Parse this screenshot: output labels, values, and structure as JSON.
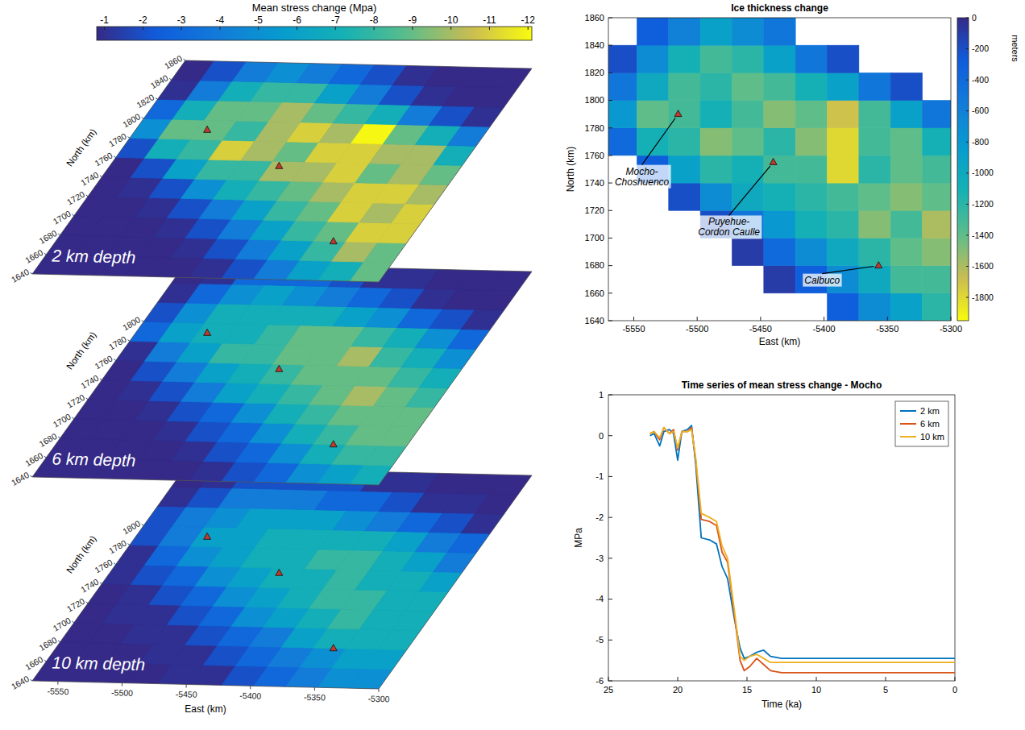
{
  "chart_data": [
    {
      "type": "contour",
      "title": "2 km depth",
      "ylabel": "North (km)",
      "xlim": [
        -5570,
        -5300
      ],
      "ylim": [
        1640,
        1860
      ],
      "yticks": [
        1640,
        1660,
        1680,
        1700,
        1720,
        1740,
        1760,
        1780,
        1800,
        1820,
        1840,
        1860
      ],
      "x": [
        -5560,
        -5535,
        -5510,
        -5485,
        -5460,
        -5435,
        -5410,
        -5385,
        -5360,
        -5335,
        -5310
      ],
      "y": [
        1650,
        1670,
        1690,
        1710,
        1730,
        1750,
        1770,
        1790,
        1810,
        1830,
        1850
      ],
      "cells": [
        [
          -0.5,
          -0.5,
          -0.5,
          -0.5,
          -0.5,
          -1,
          -2,
          -4,
          -6,
          -7,
          -9
        ],
        [
          -0.5,
          -0.5,
          -0.5,
          -0.5,
          -1,
          -2,
          -4,
          -6,
          -8,
          -10,
          -9
        ],
        [
          -0.5,
          -0.5,
          -0.5,
          -1,
          -2,
          -4,
          -6,
          -8,
          -9,
          -11,
          -11
        ],
        [
          -0.5,
          -0.5,
          -1,
          -2,
          -4,
          -6,
          -8,
          -9,
          -11,
          -10,
          -11
        ],
        [
          -0.5,
          -1,
          -2,
          -5,
          -7,
          -8,
          -9,
          -10,
          -11,
          -11,
          -10
        ],
        [
          -0.5,
          -2,
          -6,
          -8,
          -8,
          -10,
          -10,
          -11,
          -9,
          -10,
          -9
        ],
        [
          -2,
          -7,
          -8,
          -11,
          -10,
          -9,
          -11,
          -11,
          -10,
          -10,
          -7
        ],
        [
          -5,
          -9,
          -9,
          -8,
          -10,
          -11,
          -10,
          -12,
          -9,
          -7,
          -4
        ],
        [
          -3,
          -7,
          -9,
          -9,
          -10,
          -9,
          -8,
          -7,
          -4,
          -2,
          -1
        ],
        [
          -1,
          -4,
          -7,
          -8,
          -8,
          -6,
          -4,
          -2,
          -1,
          -0.5,
          -0.5
        ],
        [
          -0.5,
          -2,
          -4,
          -5,
          -4,
          -3,
          -2,
          -1,
          -0.5,
          -0.5,
          -0.5
        ]
      ],
      "volcanoes": [
        {
          "east": -5515,
          "north": 1790
        },
        {
          "east": -5440,
          "north": 1755
        },
        {
          "east": -5357,
          "north": 1680
        }
      ],
      "colorbar": {
        "title": "Mean stress change (Mpa)",
        "range": [
          -0.8,
          -12.1
        ],
        "ticks": [
          -1,
          -2,
          -3,
          -4,
          -5,
          -6,
          -7,
          -8,
          -9,
          -10,
          -11,
          -12
        ]
      }
    },
    {
      "type": "contour",
      "title": "6 km depth",
      "ylabel": "North (km)",
      "xlim": [
        -5570,
        -5300
      ],
      "ylim": [
        1640,
        1860
      ],
      "yticks": [
        1640,
        1660,
        1680,
        1700,
        1720,
        1740,
        1760,
        1780,
        1800
      ],
      "x": [
        -5560,
        -5535,
        -5510,
        -5485,
        -5460,
        -5435,
        -5410,
        -5385,
        -5360,
        -5335,
        -5310
      ],
      "y": [
        1650,
        1670,
        1690,
        1710,
        1730,
        1750,
        1770,
        1790,
        1810,
        1830,
        1850
      ],
      "cells": [
        [
          -0.5,
          -0.5,
          -0.5,
          -0.5,
          -0.5,
          -1,
          -2,
          -3,
          -5,
          -6,
          -7
        ],
        [
          -0.5,
          -0.5,
          -0.5,
          -0.5,
          -1,
          -2,
          -3,
          -5,
          -7,
          -8,
          -8
        ],
        [
          -0.5,
          -0.5,
          -0.5,
          -1,
          -2,
          -3,
          -5,
          -7,
          -8,
          -9,
          -9
        ],
        [
          -0.5,
          -0.5,
          -1,
          -2,
          -3,
          -5,
          -7,
          -8,
          -9,
          -9,
          -9
        ],
        [
          -0.5,
          -1,
          -2,
          -4,
          -6,
          -7,
          -8,
          -9,
          -10,
          -9,
          -8
        ],
        [
          -0.5,
          -2,
          -4,
          -6,
          -7,
          -8,
          -9,
          -9,
          -9,
          -8,
          -7
        ],
        [
          -1,
          -4,
          -6,
          -8,
          -8,
          -9,
          -9,
          -10,
          -8,
          -7,
          -5
        ],
        [
          -3,
          -6,
          -7,
          -7,
          -8,
          -9,
          -9,
          -8,
          -7,
          -5,
          -3
        ],
        [
          -2,
          -5,
          -7,
          -7,
          -7,
          -7,
          -6,
          -5,
          -3,
          -2,
          -1
        ],
        [
          -1,
          -3,
          -5,
          -6,
          -5,
          -4,
          -3,
          -2,
          -1,
          -0.5,
          -0.5
        ],
        [
          -0.5,
          -1,
          -3,
          -3,
          -3,
          -2,
          -1,
          -1,
          -0.5,
          -0.5,
          -0.5
        ]
      ],
      "volcanoes": [
        {
          "east": -5515,
          "north": 1790
        },
        {
          "east": -5440,
          "north": 1755
        },
        {
          "east": -5357,
          "north": 1680
        }
      ]
    },
    {
      "type": "contour",
      "title": "10 km depth",
      "xlabel": "East (km)",
      "ylabel": "North (km)",
      "xlim": [
        -5570,
        -5300
      ],
      "ylim": [
        1640,
        1860
      ],
      "xticks": [
        -5550,
        -5500,
        -5450,
        -5400,
        -5350,
        -5300
      ],
      "yticks": [
        1640,
        1660,
        1680,
        1700,
        1720,
        1740,
        1760,
        1780,
        1800
      ],
      "x": [
        -5560,
        -5535,
        -5510,
        -5485,
        -5460,
        -5435,
        -5410,
        -5385,
        -5360,
        -5335,
        -5310
      ],
      "y": [
        1650,
        1670,
        1690,
        1710,
        1730,
        1750,
        1770,
        1790,
        1810,
        1830,
        1850
      ],
      "cells": [
        [
          -0.5,
          -0.5,
          -0.5,
          -0.5,
          -1,
          -1,
          -2,
          -3,
          -4,
          -5,
          -5
        ],
        [
          -0.5,
          -0.5,
          -0.5,
          -1,
          -1,
          -2,
          -3,
          -4,
          -5,
          -6,
          -6
        ],
        [
          -0.5,
          -0.5,
          -1,
          -1,
          -2,
          -3,
          -4,
          -6,
          -7,
          -7,
          -7
        ],
        [
          -0.5,
          -1,
          -1,
          -2,
          -3,
          -5,
          -6,
          -7,
          -8,
          -7,
          -7
        ],
        [
          -0.5,
          -1,
          -2,
          -3,
          -5,
          -6,
          -7,
          -8,
          -8,
          -7,
          -7
        ],
        [
          -1,
          -2,
          -3,
          -5,
          -6,
          -7,
          -7,
          -8,
          -7,
          -7,
          -6
        ],
        [
          -1,
          -3,
          -5,
          -6,
          -7,
          -7,
          -8,
          -8,
          -7,
          -6,
          -4
        ],
        [
          -2,
          -4,
          -6,
          -6,
          -7,
          -7,
          -7,
          -7,
          -6,
          -4,
          -3
        ],
        [
          -2,
          -4,
          -5,
          -6,
          -6,
          -6,
          -5,
          -4,
          -3,
          -2,
          -1
        ],
        [
          -1,
          -2,
          -4,
          -4,
          -4,
          -3,
          -3,
          -2,
          -1,
          -1,
          -0.5
        ],
        [
          -0.5,
          -1,
          -2,
          -2,
          -2,
          -2,
          -1,
          -1,
          -0.5,
          -0.5,
          -0.5
        ]
      ],
      "volcanoes": [
        {
          "east": -5515,
          "north": 1790
        },
        {
          "east": -5440,
          "north": 1755
        },
        {
          "east": -5357,
          "north": 1680
        }
      ]
    },
    {
      "type": "contour",
      "title": "Ice thickness change",
      "xlabel": "East (km)",
      "ylabel": "North (km)",
      "xlim": [
        -5570,
        -5300
      ],
      "ylim": [
        1640,
        1860
      ],
      "xticks": [
        -5550,
        -5500,
        -5450,
        -5400,
        -5350,
        -5300
      ],
      "yticks": [
        1640,
        1660,
        1680,
        1700,
        1720,
        1740,
        1760,
        1780,
        1800,
        1820,
        1840,
        1860
      ],
      "x": [
        -5560,
        -5535,
        -5510,
        -5485,
        -5460,
        -5435,
        -5410,
        -5385,
        -5360,
        -5335,
        -5310
      ],
      "y": [
        1650,
        1670,
        1690,
        1710,
        1730,
        1750,
        1770,
        1790,
        1810,
        1830,
        1850
      ],
      "cells": [
        [
          null,
          null,
          null,
          null,
          null,
          null,
          null,
          -300,
          -700,
          -900,
          -1200
        ],
        [
          null,
          null,
          null,
          null,
          null,
          -100,
          -300,
          -700,
          -1000,
          -1300,
          -1300
        ],
        [
          null,
          null,
          null,
          null,
          -100,
          -400,
          -700,
          -1000,
          -1200,
          -1400,
          -1500
        ],
        [
          null,
          null,
          null,
          -200,
          -500,
          -800,
          -1100,
          -1200,
          -1500,
          -1300,
          -1600
        ],
        [
          null,
          null,
          -200,
          -700,
          -1000,
          -1100,
          -1200,
          -1300,
          -1400,
          -1500,
          -1400
        ],
        [
          null,
          -300,
          -900,
          -1200,
          -1100,
          -1300,
          -1300,
          -1800,
          -1200,
          -1400,
          -1300
        ],
        [
          -400,
          -1100,
          -1200,
          -1500,
          -1400,
          -1200,
          -1500,
          -1800,
          -1300,
          -1400,
          -1100
        ],
        [
          -800,
          -1400,
          -1300,
          -1100,
          -1300,
          -1500,
          -1400,
          -1700,
          -1300,
          -900,
          -500
        ],
        [
          -500,
          -1000,
          -1300,
          -1200,
          -1400,
          -1300,
          -1100,
          -900,
          -500,
          -200,
          null
        ],
        [
          -200,
          -700,
          -1100,
          -1300,
          -1200,
          -900,
          -500,
          -200,
          null,
          null,
          null
        ],
        [
          null,
          -300,
          -600,
          -900,
          -700,
          -500,
          null,
          null,
          null,
          null,
          null
        ]
      ],
      "volcanoes": [
        {
          "name": "Mocho-Choshuenco",
          "east": -5515,
          "north": 1790
        },
        {
          "name": "Puyehue-Cordon Caulle",
          "east": -5440,
          "north": 1755
        },
        {
          "name": "Calbuco",
          "east": -5357,
          "north": 1680
        }
      ],
      "colorbar": {
        "label": "meters",
        "range": [
          0,
          -1950
        ],
        "ticks": [
          0,
          -200,
          -400,
          -600,
          -800,
          -1000,
          -1200,
          -1400,
          -1600,
          -1800
        ]
      }
    },
    {
      "type": "line",
      "title": "Time series of mean stress change - Mocho",
      "xlabel": "Time (ka)",
      "ylabel": "MPa",
      "xlim": [
        25,
        0
      ],
      "ylim": [
        -6,
        1
      ],
      "xticks": [
        25,
        20,
        15,
        10,
        5,
        0
      ],
      "yticks": [
        -6,
        -5,
        -4,
        -3,
        -2,
        -1,
        0,
        1
      ],
      "legend": "top-right",
      "x": [
        22,
        21.7,
        21.3,
        21,
        20.6,
        20.3,
        20,
        19.7,
        19.3,
        19,
        18.7,
        18.3,
        17.7,
        17.2,
        16.8,
        16.4,
        15.9,
        15.5,
        15.2,
        14.8,
        14.3,
        13.8,
        13.3,
        12.5,
        10,
        5,
        0
      ],
      "series": [
        {
          "name": "2 km",
          "color": "#0072bd",
          "values": [
            0,
            0.05,
            -0.25,
            0.1,
            0.15,
            0.05,
            -0.6,
            0.1,
            0.15,
            0.25,
            -0.7,
            -2.5,
            -2.55,
            -2.65,
            -3.2,
            -3.5,
            -4.5,
            -5.2,
            -5.45,
            -5.4,
            -5.3,
            -5.25,
            -5.4,
            -5.45,
            -5.45,
            -5.45,
            -5.45
          ]
        },
        {
          "name": "6 km",
          "color": "#d95319",
          "values": [
            0.05,
            0.1,
            -0.1,
            0.2,
            0.05,
            0.15,
            -0.35,
            0.1,
            0.1,
            0.2,
            -0.6,
            -2.05,
            -2.1,
            -2.2,
            -2.85,
            -3.1,
            -4.4,
            -5.5,
            -5.75,
            -5.65,
            -5.45,
            -5.6,
            -5.75,
            -5.8,
            -5.8,
            -5.8,
            -5.8
          ]
        },
        {
          "name": "10 km",
          "color": "#edb120",
          "values": [
            0.05,
            0.1,
            -0.05,
            0.2,
            0.05,
            0.1,
            -0.3,
            0.1,
            0.1,
            0.15,
            -0.55,
            -1.9,
            -2.0,
            -2.1,
            -2.7,
            -3.0,
            -4.3,
            -5.4,
            -5.5,
            -5.4,
            -5.35,
            -5.45,
            -5.55,
            -5.55,
            -5.55,
            -5.55,
            -5.55
          ]
        }
      ]
    }
  ]
}
